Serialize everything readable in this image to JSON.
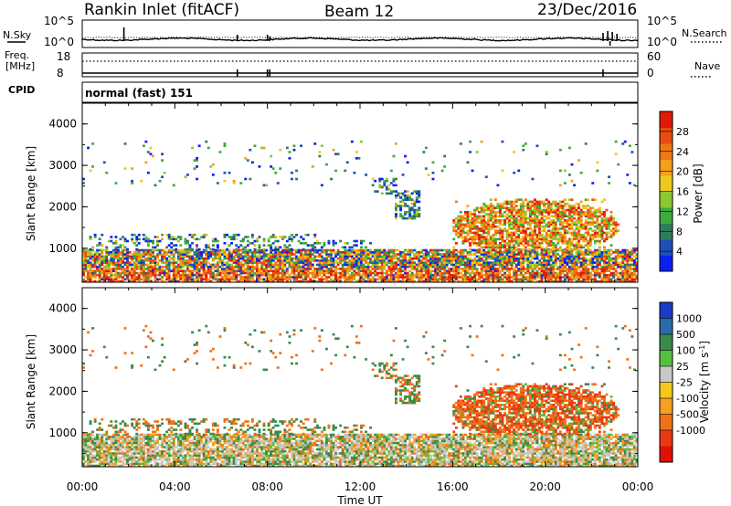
{
  "header": {
    "station": "Rankin Inlet (fitACF)",
    "beam": "Beam 12",
    "date": "23/Dec/2016"
  },
  "noise_panel": {
    "left_label": "N.Sky",
    "right_label": "N.Search",
    "y_ticks_left": [
      "10^5",
      "10^0"
    ],
    "y_ticks_right": [
      "10^5",
      "10^0"
    ]
  },
  "freq_panel": {
    "left_label_1": "Freq.",
    "left_label_2": "[MHz]",
    "right_label": "Nave",
    "y_ticks_left": [
      "18",
      "8"
    ],
    "y_ticks_right": [
      "60",
      "0"
    ]
  },
  "cpid_panel": {
    "label": "CPID",
    "text": "normal (fast) 151"
  },
  "chart_data": [
    {
      "type": "heatmap",
      "name": "power",
      "ylabel": "Slant Range [km]",
      "xlabel": "Time UT",
      "x_ticks": [
        "00:00",
        "04:00",
        "08:00",
        "12:00",
        "16:00",
        "20:00",
        "00:00"
      ],
      "y_ticks": [
        "1000",
        "2000",
        "3000",
        "4000"
      ],
      "ylim": [
        180,
        4500
      ],
      "xlim_hours": [
        0,
        24
      ],
      "colorbar": {
        "label": "Power [dB]",
        "ticks": [
          "4",
          "8",
          "12",
          "16",
          "20",
          "24",
          "28"
        ],
        "colors": [
          "#0a20f0",
          "#1f4fb8",
          "#2e7d5a",
          "#3fa83f",
          "#8cc832",
          "#f0c81e",
          "#f5a01a",
          "#f07814",
          "#e84a10",
          "#e01a0a"
        ]
      }
    },
    {
      "type": "heatmap",
      "name": "velocity",
      "ylabel": "Slant Range [km]",
      "xlabel": "Time UT",
      "x_ticks": [
        "00:00",
        "04:00",
        "08:00",
        "12:00",
        "16:00",
        "20:00",
        "00:00"
      ],
      "y_ticks": [
        "1000",
        "2000",
        "3000",
        "4000"
      ],
      "ylim": [
        180,
        4500
      ],
      "xlim_hours": [
        0,
        24
      ],
      "colorbar": {
        "label": "Velocity [m s^-1]",
        "ticks": [
          "1000",
          "500",
          "100",
          "25",
          "-25",
          "-100",
          "-500",
          "-1000"
        ],
        "colors": [
          "#1a3cc8",
          "#2a6aa8",
          "#3a8a4a",
          "#58c040",
          "#c8c8c8",
          "#f5c81a",
          "#f5a020",
          "#f07018",
          "#e83a12",
          "#e01008"
        ]
      }
    }
  ],
  "axis": {
    "xlabel": "Time UT"
  }
}
